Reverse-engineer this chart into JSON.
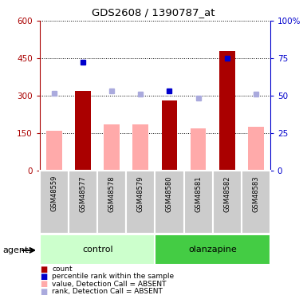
{
  "title": "GDS2608 / 1390787_at",
  "samples": [
    "GSM48559",
    "GSM48577",
    "GSM48578",
    "GSM48579",
    "GSM48580",
    "GSM48581",
    "GSM48582",
    "GSM48583"
  ],
  "count_present": [
    0,
    320,
    0,
    0,
    280,
    0,
    480,
    0
  ],
  "count_absent": [
    160,
    0,
    185,
    185,
    0,
    170,
    0,
    175
  ],
  "rank_present": [
    0,
    435,
    0,
    0,
    320,
    0,
    450,
    0
  ],
  "rank_absent_left": [
    310,
    0,
    320,
    305,
    0,
    290,
    0,
    305
  ],
  "ylim_left": [
    0,
    600
  ],
  "ylim_right": [
    0,
    100
  ],
  "yticks_left": [
    0,
    150,
    300,
    450,
    600
  ],
  "ytick_labels_left": [
    "0",
    "150",
    "300",
    "450",
    "600"
  ],
  "yticks_right": [
    0,
    25,
    50,
    75,
    100
  ],
  "ytick_labels_right": [
    "0",
    "25",
    "50",
    "75",
    "100%"
  ],
  "color_present_bar": "#aa0000",
  "color_absent_bar": "#ffaaaa",
  "color_rank_present": "#0000cc",
  "color_rank_absent": "#aaaadd",
  "control_color": "#ccffcc",
  "olanzapine_color": "#44cc44",
  "sample_bg": "#cccccc",
  "legend_items": [
    {
      "color": "#aa0000",
      "marker": "s",
      "label": "count"
    },
    {
      "color": "#0000cc",
      "marker": "s",
      "label": "percentile rank within the sample"
    },
    {
      "color": "#ffaaaa",
      "marker": "s",
      "label": "value, Detection Call = ABSENT"
    },
    {
      "color": "#aaaadd",
      "marker": "s",
      "label": "rank, Detection Call = ABSENT"
    }
  ]
}
